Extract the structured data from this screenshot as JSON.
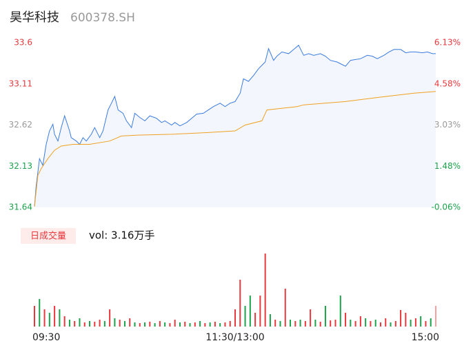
{
  "header": {
    "name": "昊华科技",
    "code": "600378.SH"
  },
  "chart_data": [
    {
      "type": "line",
      "xlim": [
        0,
        240
      ],
      "ylim": [
        31.64,
        33.6
      ],
      "yticks": [
        33.6,
        33.11,
        32.62,
        32.13,
        31.64
      ],
      "ytick_colors": [
        "#e8383d",
        "#e8383d",
        "#999999",
        "#1aa34a",
        "#1aa34a"
      ],
      "y2lim": [
        -0.06,
        6.13
      ],
      "y2ticks": [
        {
          "value": 6.13,
          "label": "6.13%"
        },
        {
          "value": 4.58,
          "label": "4.58%"
        },
        {
          "value": 3.03,
          "label": "3.03%"
        },
        {
          "value": 1.48,
          "label": "1.48%"
        },
        {
          "value": -0.06,
          "label": "-0.06%"
        }
      ],
      "series": [
        {
          "color": "#3a7be0",
          "area": "#f3f7fd",
          "x": [
            0,
            1,
            3,
            5,
            7,
            9,
            11,
            12,
            14,
            16,
            18,
            21,
            22,
            25,
            27,
            29,
            31,
            34,
            36,
            39,
            41,
            44,
            46,
            48,
            50,
            53,
            55,
            58,
            60,
            63,
            66,
            69,
            73,
            76,
            78,
            82,
            84,
            87,
            91,
            94,
            97,
            101,
            104,
            107,
            111,
            114,
            117,
            120,
            123,
            125,
            128,
            131,
            134,
            138,
            140,
            143,
            145,
            148,
            152,
            155,
            158,
            161,
            164,
            167,
            171,
            174,
            177,
            181,
            183,
            186,
            189,
            192,
            195,
            199,
            202,
            205,
            209,
            212,
            215,
            219,
            222,
            225,
            228,
            232,
            235,
            238,
            240
          ],
          "values": [
            31.65,
            31.89,
            32.22,
            32.14,
            32.39,
            32.55,
            32.63,
            32.51,
            32.43,
            32.59,
            32.73,
            32.55,
            32.47,
            32.43,
            32.39,
            32.47,
            32.43,
            32.51,
            32.59,
            32.47,
            32.55,
            32.8,
            32.88,
            32.96,
            32.8,
            32.76,
            32.67,
            32.59,
            32.76,
            32.71,
            32.67,
            32.73,
            32.7,
            32.65,
            32.67,
            32.62,
            32.65,
            32.61,
            32.65,
            32.7,
            32.75,
            32.76,
            32.8,
            32.84,
            32.88,
            32.84,
            32.88,
            32.9,
            33.0,
            33.17,
            33.14,
            33.21,
            33.29,
            33.37,
            33.53,
            33.39,
            33.44,
            33.49,
            33.47,
            33.52,
            33.57,
            33.45,
            33.47,
            33.45,
            33.47,
            33.44,
            33.39,
            33.37,
            33.35,
            33.32,
            33.39,
            33.4,
            33.41,
            33.45,
            33.44,
            33.41,
            33.45,
            33.49,
            33.52,
            33.52,
            33.48,
            33.49,
            33.49,
            33.48,
            33.49,
            33.47,
            33.47
          ]
        },
        {
          "color": "#f0a020",
          "x": [
            0,
            2,
            4,
            8,
            12,
            16,
            23,
            33,
            45,
            52,
            62,
            82,
            103,
            120,
            126,
            136,
            139,
            157,
            161,
            186,
            206,
            227,
            240
          ],
          "values": [
            31.65,
            32.02,
            32.1,
            32.22,
            32.32,
            32.37,
            32.39,
            32.39,
            32.43,
            32.49,
            32.5,
            32.51,
            32.53,
            32.55,
            32.62,
            32.67,
            32.8,
            32.84,
            32.86,
            32.9,
            32.95,
            33.0,
            33.02
          ]
        }
      ]
    },
    {
      "type": "bar",
      "label": "日成交量",
      "summary": "vol: 3.16万手",
      "xlim": [
        0,
        240
      ],
      "ylim": [
        0,
        114
      ],
      "xticks": [
        {
          "value": 0,
          "label": "09:30"
        },
        {
          "value": 120,
          "label": "11:30/13:00"
        },
        {
          "value": 240,
          "label": "15:00"
        }
      ],
      "x": [
        0,
        3,
        6,
        9,
        12,
        15,
        18,
        21,
        24,
        27,
        30,
        33,
        36,
        39,
        42,
        45,
        48,
        51,
        54,
        57,
        60,
        63,
        66,
        69,
        72,
        75,
        78,
        81,
        84,
        87,
        90,
        93,
        96,
        99,
        102,
        105,
        108,
        111,
        114,
        117,
        120,
        123,
        126,
        129,
        132,
        135,
        138,
        141,
        144,
        147,
        150,
        153,
        156,
        159,
        162,
        165,
        168,
        171,
        174,
        177,
        180,
        183,
        186,
        189,
        192,
        195,
        198,
        201,
        204,
        207,
        210,
        213,
        216,
        219,
        222,
        225,
        228,
        231,
        234,
        237,
        240
      ],
      "values": [
        30,
        40,
        25,
        20,
        30,
        25,
        15,
        10,
        8,
        12,
        6,
        8,
        7,
        10,
        8,
        25,
        12,
        10,
        8,
        12,
        6,
        5,
        6,
        7,
        5,
        8,
        6,
        5,
        10,
        6,
        7,
        5,
        6,
        8,
        5,
        6,
        7,
        5,
        6,
        8,
        25,
        68,
        30,
        45,
        20,
        45,
        106,
        18,
        10,
        8,
        55,
        10,
        8,
        10,
        8,
        25,
        10,
        7,
        30,
        9,
        10,
        45,
        20,
        10,
        8,
        15,
        12,
        8,
        10,
        6,
        12,
        6,
        8,
        24,
        20,
        10,
        12,
        15,
        8,
        12,
        30
      ],
      "bar_colors": [
        "#e8383d",
        "#1aa34a",
        "#e8383d",
        "#1aa34a",
        "#e8383d",
        "#1aa34a",
        "#e8383d",
        "#1aa34a",
        "#e8383d",
        "#1aa34a",
        "#e8383d",
        "#1aa34a",
        "#e8383d",
        "#e8383d",
        "#1aa34a",
        "#e8383d",
        "#1aa34a",
        "#e8383d",
        "#1aa34a",
        "#e8383d",
        "#1aa34a",
        "#e8383d",
        "#1aa34a",
        "#e8383d",
        "#1aa34a",
        "#e8383d",
        "#1aa34a",
        "#e8383d",
        "#e8383d",
        "#1aa34a",
        "#e8383d",
        "#1aa34a",
        "#e8383d",
        "#1aa34a",
        "#e8383d",
        "#1aa34a",
        "#e8383d",
        "#1aa34a",
        "#e8383d",
        "#e8383d",
        "#e8383d",
        "#e8383d",
        "#1aa34a",
        "#1aa34a",
        "#e8383d",
        "#e8383d",
        "#e8383d",
        "#1aa34a",
        "#e8383d",
        "#1aa34a",
        "#e8383d",
        "#1aa34a",
        "#e8383d",
        "#1aa34a",
        "#e8383d",
        "#e8383d",
        "#1aa34a",
        "#e8383d",
        "#1aa34a",
        "#e8383d",
        "#e8383d",
        "#1aa34a",
        "#e8383d",
        "#1aa34a",
        "#e8383d",
        "#e8383d",
        "#1aa34a",
        "#e8383d",
        "#1aa34a",
        "#e8383d",
        "#e8383d",
        "#1aa34a",
        "#e8383d",
        "#e8383d",
        "#e8383d",
        "#1aa34a",
        "#e8383d",
        "#1aa34a",
        "#e8383d",
        "#1aa34a",
        "#f4a0a0"
      ]
    }
  ]
}
